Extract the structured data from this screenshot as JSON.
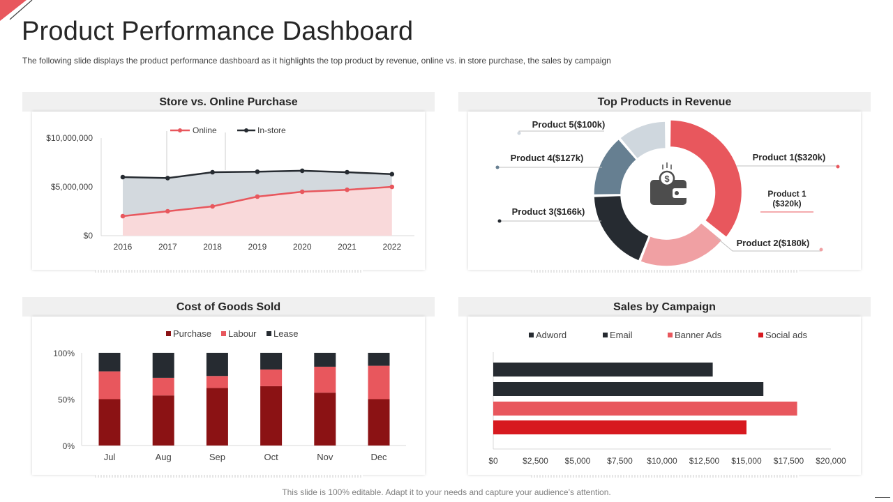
{
  "page": {
    "title": "Product Performance Dashboard",
    "subtitle": "The following slide displays the product performance dashboard as it highlights the top product by revenue, online vs. in store purchase, the sales by campaign",
    "footer": "This slide is 100% editable. Adapt it to your needs and capture your audience’s attention."
  },
  "colors": {
    "red": "#e8575d",
    "light_red": "#f0a0a3",
    "dark_red": "#8b1214",
    "bright_red": "#d7191f",
    "dark": "#262b31",
    "slate": "#667f91",
    "pale_slate": "#cfd7de",
    "pale_pink": "#f9d9da",
    "pale_grey": "#d3d9de"
  },
  "chart_data": [
    {
      "id": "store_online",
      "type": "area",
      "title": "Store vs. Online Purchase",
      "categories": [
        "2016",
        "2017",
        "2018",
        "2019",
        "2020",
        "2021",
        "2022"
      ],
      "series": [
        {
          "name": "Online",
          "values": [
            2000000,
            2500000,
            3000000,
            4000000,
            4500000,
            4700000,
            5000000
          ]
        },
        {
          "name": "In-store",
          "values": [
            6000000,
            5900000,
            6500000,
            6550000,
            6650000,
            6500000,
            6300000
          ]
        }
      ],
      "ylim": [
        0,
        10000000
      ],
      "y_ticks": [
        {
          "value": 10000000,
          "label": "$10,000,000"
        },
        {
          "value": 5000000,
          "label": "$5,000,000"
        },
        {
          "value": 0,
          "label": "$0"
        }
      ],
      "legend": "top-center"
    },
    {
      "id": "top_products",
      "type": "pie",
      "title": "Top Products in Revenue",
      "slices": [
        {
          "label": "Product 1($320k)",
          "value": 320
        },
        {
          "label": "Product 2($180k)",
          "value": 180
        },
        {
          "label": "Product 3($166k)",
          "value": 166
        },
        {
          "label": "Product 4($127k)",
          "value": 127
        },
        {
          "label": "Product 5($100k)",
          "value": 100
        }
      ],
      "annotation": [
        "Product 1",
        "($320k)"
      ],
      "center_icon": "wallet-icon"
    },
    {
      "id": "cogs",
      "type": "bar",
      "stacked": true,
      "title": "Cost of Goods Sold",
      "categories": [
        "Jul",
        "Aug",
        "Sep",
        "Oct",
        "Nov",
        "Dec"
      ],
      "series": [
        {
          "name": "Purchase",
          "values": [
            50,
            54,
            62,
            64,
            57,
            50
          ]
        },
        {
          "name": "Labour",
          "values": [
            30,
            19,
            13,
            18,
            28,
            36
          ]
        },
        {
          "name": "Lease",
          "values": [
            20,
            27,
            25,
            18,
            15,
            14
          ]
        }
      ],
      "ylim": [
        0,
        100
      ],
      "y_ticks": [
        {
          "value": 100,
          "label": "100%"
        },
        {
          "value": 50,
          "label": "50%"
        },
        {
          "value": 0,
          "label": "0%"
        }
      ],
      "legend": "top-center"
    },
    {
      "id": "campaign",
      "type": "bar",
      "orientation": "horizontal",
      "title": "Sales by Campaign",
      "categories": [
        "Adword",
        "Email",
        "Banner Ads",
        "Social ads"
      ],
      "values": [
        13000,
        16000,
        18000,
        15000
      ],
      "xlim": [
        0,
        20000
      ],
      "x_ticks": [
        {
          "value": 0,
          "label": "$0"
        },
        {
          "value": 2500,
          "label": "$2,500"
        },
        {
          "value": 5000,
          "label": "$5,000"
        },
        {
          "value": 7500,
          "label": "$7,500"
        },
        {
          "value": 10000,
          "label": "$10,000"
        },
        {
          "value": 12500,
          "label": "$12,500"
        },
        {
          "value": 15000,
          "label": "$15,000"
        },
        {
          "value": 17500,
          "label": "$17,500"
        },
        {
          "value": 20000,
          "label": "$20,000"
        }
      ],
      "legend": "top-center"
    }
  ]
}
